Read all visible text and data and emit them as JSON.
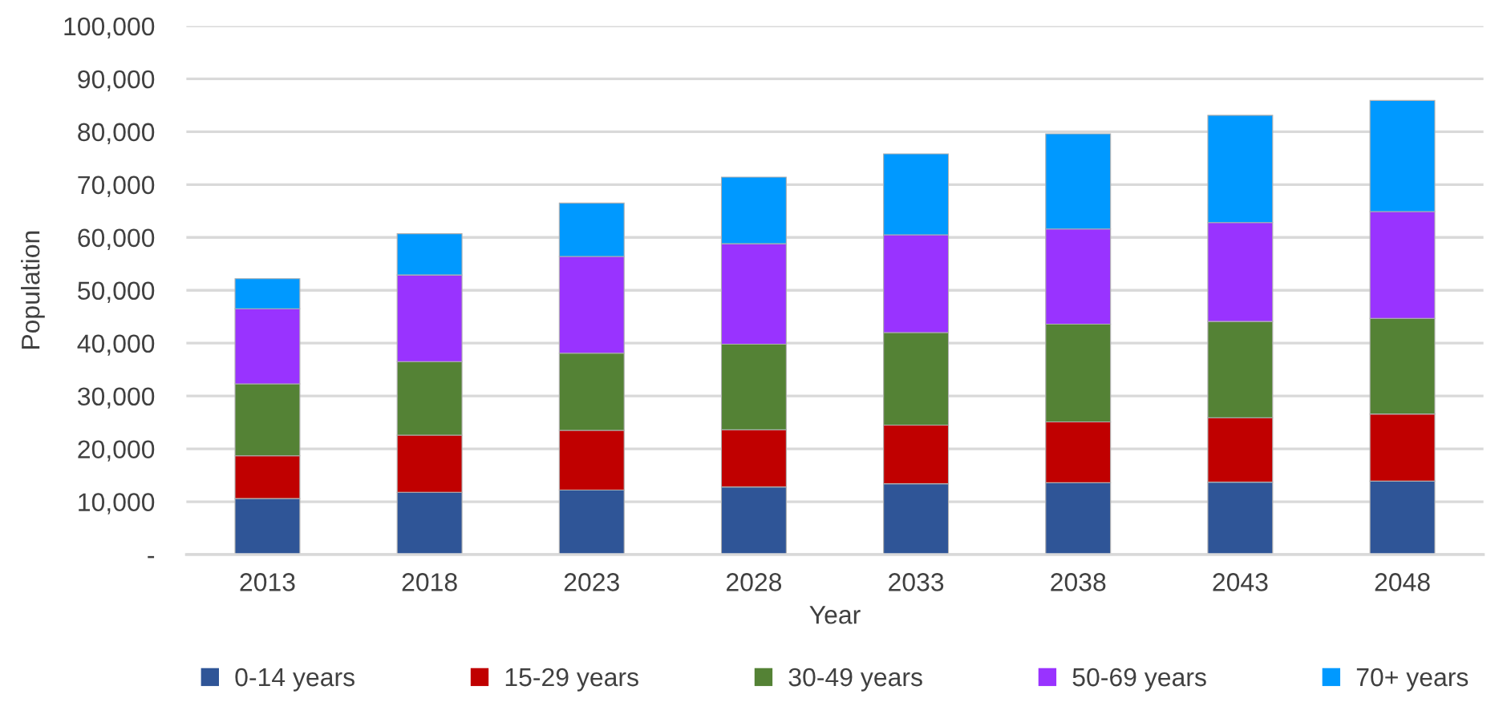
{
  "chart_data": {
    "type": "bar",
    "stacked": true,
    "xlabel": "Year",
    "ylabel": "Population",
    "categories": [
      "2013",
      "2018",
      "2023",
      "2028",
      "2033",
      "2038",
      "2043",
      "2048"
    ],
    "series": [
      {
        "name": "0-14 years",
        "color": "#2f5597",
        "values": [
          10600,
          11800,
          12200,
          12800,
          13400,
          13600,
          13700,
          13900
        ]
      },
      {
        "name": "15-29 years",
        "color": "#c00000",
        "values": [
          8100,
          10800,
          11300,
          10800,
          11100,
          11500,
          12200,
          12700
        ]
      },
      {
        "name": "30-49 years",
        "color": "#548235",
        "values": [
          13600,
          13900,
          14600,
          16200,
          17500,
          18500,
          18200,
          18100
        ]
      },
      {
        "name": "50-69 years",
        "color": "#9933ff",
        "values": [
          14200,
          16400,
          18300,
          19000,
          18500,
          18000,
          18700,
          20200
        ]
      },
      {
        "name": "70+ years",
        "color": "#0099ff",
        "values": [
          5700,
          7800,
          10100,
          12600,
          15300,
          18000,
          20300,
          21000
        ]
      }
    ],
    "ylim": [
      0,
      100000
    ],
    "yticks": [
      {
        "value": 0,
        "label": "-"
      },
      {
        "value": 10000,
        "label": "10,000"
      },
      {
        "value": 20000,
        "label": "20,000"
      },
      {
        "value": 30000,
        "label": "30,000"
      },
      {
        "value": 40000,
        "label": "40,000"
      },
      {
        "value": 50000,
        "label": "50,000"
      },
      {
        "value": 60000,
        "label": "60,000"
      },
      {
        "value": 70000,
        "label": "70,000"
      },
      {
        "value": 80000,
        "label": "80,000"
      },
      {
        "value": 90000,
        "label": "90,000"
      },
      {
        "value": 100000,
        "label": "100,000"
      }
    ],
    "grid": "y",
    "legend": "bottom"
  }
}
